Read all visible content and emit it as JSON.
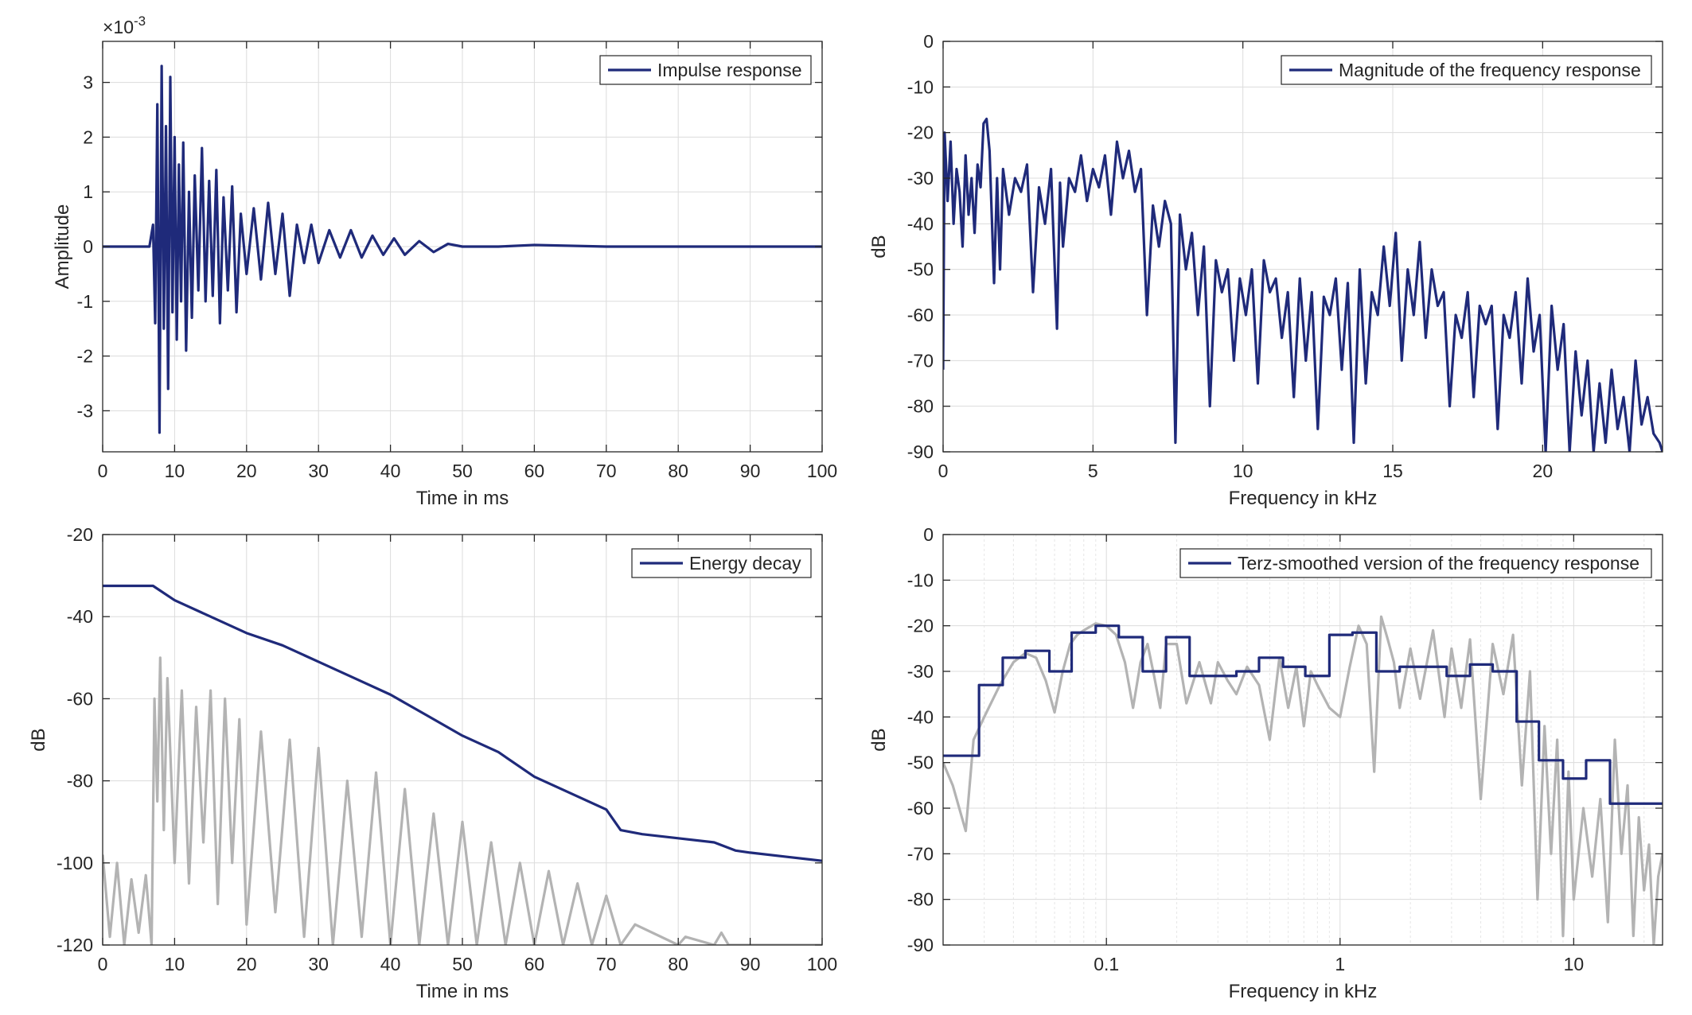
{
  "colors": {
    "series": "#1f2a7a",
    "gray": "#b3b3b3",
    "frame": "#262626",
    "grid": "#dcdcdc"
  },
  "chart_data": [
    {
      "type": "line",
      "exponent_label": "×10",
      "exponent_power": "-3",
      "xlabel": "Time in ms",
      "ylabel": "Amplitude",
      "xlim": [
        0,
        100
      ],
      "ylim": [
        -3.75,
        3.75
      ],
      "xticks": [
        0,
        10,
        20,
        30,
        40,
        50,
        60,
        70,
        80,
        90,
        100
      ],
      "xtick_labels": [
        "0",
        "10",
        "20",
        "30",
        "40",
        "50",
        "60",
        "70",
        "80",
        "90",
        "100"
      ],
      "yticks": [
        3,
        2,
        1,
        0,
        -1,
        -2,
        -3
      ],
      "ytick_labels": [
        "3",
        "2",
        "1",
        "0",
        "-1",
        "-2",
        "-3"
      ],
      "grid": true,
      "legend": "top-right",
      "series": [
        {
          "name": "Impulse response",
          "color": "#1f2a7a",
          "x": [
            0,
            6.5,
            7.0,
            7.3,
            7.6,
            7.9,
            8.2,
            8.5,
            8.8,
            9.1,
            9.4,
            9.7,
            10.0,
            10.3,
            10.6,
            10.9,
            11.2,
            11.6,
            12.0,
            12.4,
            12.8,
            13.3,
            13.8,
            14.3,
            14.8,
            15.3,
            15.8,
            16.3,
            16.8,
            17.4,
            18.0,
            18.6,
            19.2,
            20.0,
            21.0,
            22.0,
            23.0,
            24.0,
            25.0,
            26.0,
            27.0,
            28.0,
            29.0,
            30.0,
            31.5,
            33.0,
            34.5,
            36.0,
            37.5,
            39.0,
            40.5,
            42.0,
            44.0,
            46.0,
            48.0,
            50.0,
            55.0,
            60.0,
            70.0,
            80.0,
            90.0,
            100.0
          ],
          "values": [
            0,
            0,
            0.4,
            -1.4,
            2.6,
            -3.4,
            3.3,
            -1.5,
            2.2,
            -2.6,
            3.1,
            -1.2,
            2.0,
            -1.7,
            1.5,
            -1.0,
            1.9,
            -1.9,
            1.0,
            -1.3,
            1.3,
            -0.8,
            1.8,
            -1.0,
            1.2,
            -0.9,
            1.4,
            -1.4,
            0.9,
            -0.8,
            1.1,
            -1.2,
            0.6,
            -0.5,
            0.7,
            -0.6,
            0.8,
            -0.5,
            0.6,
            -0.9,
            0.4,
            -0.3,
            0.4,
            -0.3,
            0.3,
            -0.2,
            0.3,
            -0.2,
            0.2,
            -0.15,
            0.15,
            -0.15,
            0.1,
            -0.1,
            0.05,
            0,
            0,
            0.03,
            0,
            0,
            0,
            0
          ]
        }
      ]
    },
    {
      "type": "line",
      "xlabel": "Frequency in kHz",
      "ylabel": "dB",
      "xlim": [
        0,
        24
      ],
      "ylim": [
        -90,
        0
      ],
      "xticks": [
        0,
        5,
        10,
        15,
        20
      ],
      "xtick_labels": [
        "0",
        "5",
        "10",
        "15",
        "20"
      ],
      "yticks": [
        0,
        -10,
        -20,
        -30,
        -40,
        -50,
        -60,
        -70,
        -80,
        -90
      ],
      "ytick_labels": [
        "0",
        "-10",
        "-20",
        "-30",
        "-40",
        "-50",
        "-60",
        "-70",
        "-80",
        "-90"
      ],
      "grid": true,
      "legend": "top-right",
      "series": [
        {
          "name": "Magnitude of the frequency response",
          "color": "#1f2a7a",
          "x": [
            0.0,
            0.05,
            0.15,
            0.25,
            0.35,
            0.45,
            0.55,
            0.65,
            0.75,
            0.85,
            0.95,
            1.05,
            1.15,
            1.25,
            1.35,
            1.45,
            1.55,
            1.7,
            1.8,
            1.9,
            2.0,
            2.2,
            2.4,
            2.6,
            2.8,
            3.0,
            3.2,
            3.4,
            3.6,
            3.8,
            3.9,
            4.0,
            4.2,
            4.4,
            4.6,
            4.8,
            5.0,
            5.2,
            5.4,
            5.6,
            5.8,
            6.0,
            6.2,
            6.4,
            6.6,
            6.8,
            7.0,
            7.2,
            7.4,
            7.6,
            7.75,
            7.9,
            8.1,
            8.3,
            8.5,
            8.7,
            8.9,
            9.1,
            9.3,
            9.5,
            9.7,
            9.9,
            10.1,
            10.3,
            10.5,
            10.7,
            10.9,
            11.1,
            11.3,
            11.5,
            11.7,
            11.9,
            12.1,
            12.3,
            12.5,
            12.7,
            12.9,
            13.1,
            13.3,
            13.5,
            13.7,
            13.9,
            14.1,
            14.3,
            14.5,
            14.7,
            14.9,
            15.1,
            15.3,
            15.5,
            15.7,
            15.9,
            16.1,
            16.3,
            16.5,
            16.7,
            16.9,
            17.1,
            17.3,
            17.5,
            17.7,
            17.9,
            18.1,
            18.3,
            18.5,
            18.7,
            18.9,
            19.1,
            19.3,
            19.5,
            19.7,
            19.9,
            20.1,
            20.3,
            20.5,
            20.7,
            20.9,
            21.1,
            21.3,
            21.5,
            21.7,
            21.9,
            22.1,
            22.3,
            22.5,
            22.7,
            22.9,
            23.1,
            23.3,
            23.5,
            23.7,
            23.9,
            24.0
          ],
          "values": [
            -72,
            -20,
            -35,
            -22,
            -40,
            -28,
            -33,
            -45,
            -25,
            -38,
            -30,
            -42,
            -27,
            -32,
            -18,
            -17,
            -24,
            -53,
            -30,
            -50,
            -28,
            -38,
            -30,
            -33,
            -27,
            -55,
            -32,
            -40,
            -28,
            -63,
            -31,
            -45,
            -30,
            -33,
            -25,
            -35,
            -28,
            -32,
            -25,
            -38,
            -22,
            -30,
            -24,
            -33,
            -28,
            -60,
            -36,
            -45,
            -35,
            -40,
            -88,
            -38,
            -50,
            -42,
            -60,
            -45,
            -80,
            -48,
            -55,
            -50,
            -70,
            -52,
            -60,
            -50,
            -75,
            -48,
            -55,
            -52,
            -65,
            -55,
            -78,
            -52,
            -70,
            -55,
            -85,
            -56,
            -60,
            -52,
            -72,
            -53,
            -88,
            -50,
            -75,
            -55,
            -60,
            -45,
            -58,
            -42,
            -70,
            -50,
            -60,
            -44,
            -65,
            -50,
            -58,
            -55,
            -80,
            -60,
            -65,
            -55,
            -78,
            -58,
            -62,
            -58,
            -85,
            -60,
            -65,
            -55,
            -75,
            -52,
            -68,
            -60,
            -90,
            -58,
            -72,
            -62,
            -90,
            -68,
            -82,
            -70,
            -90,
            -75,
            -88,
            -72,
            -85,
            -78,
            -90,
            -70,
            -84,
            -78,
            -86,
            -88,
            -90
          ]
        }
      ]
    },
    {
      "type": "line",
      "xlabel": "Time in ms",
      "ylabel": "dB",
      "xlim": [
        0,
        100
      ],
      "ylim": [
        -120,
        -20
      ],
      "xticks": [
        0,
        10,
        20,
        30,
        40,
        50,
        60,
        70,
        80,
        90,
        100
      ],
      "xtick_labels": [
        "0",
        "10",
        "20",
        "30",
        "40",
        "50",
        "60",
        "70",
        "80",
        "90",
        "100"
      ],
      "yticks": [
        -20,
        -40,
        -60,
        -80,
        -100,
        -120
      ],
      "ytick_labels": [
        "-20",
        "-40",
        "-60",
        "-80",
        "-100",
        "-120"
      ],
      "grid": true,
      "legend": "top-right",
      "series": [
        {
          "name": "Energy decay",
          "color": "#1f2a7a",
          "x": [
            0,
            7,
            10,
            15,
            20,
            25,
            30,
            35,
            40,
            45,
            50,
            55,
            60,
            65,
            70,
            72,
            75,
            80,
            85,
            88,
            90,
            95,
            100
          ],
          "values": [
            -32.5,
            -32.5,
            -36,
            -40,
            -44,
            -47,
            -51,
            -55,
            -59,
            -64,
            -69,
            -73,
            -79,
            -83,
            -87,
            -92,
            -93,
            -94,
            -95,
            -97,
            -97.5,
            -98.5,
            -99.5
          ]
        },
        {
          "name": "",
          "color": "#b3b3b3",
          "x": [
            0,
            1,
            2,
            3,
            4,
            5,
            6,
            6.8,
            7.2,
            7.6,
            8.0,
            8.5,
            9,
            10,
            11,
            12,
            13,
            14,
            15,
            16,
            17,
            18,
            19,
            20,
            22,
            24,
            26,
            28,
            30,
            32,
            34,
            36,
            38,
            40,
            42,
            44,
            46,
            48,
            50,
            52,
            54,
            56,
            58,
            60,
            62,
            64,
            66,
            68,
            70,
            72,
            74,
            80,
            81,
            85,
            86,
            87,
            90,
            100
          ],
          "values": [
            -98,
            -118,
            -100,
            -120,
            -104,
            -117,
            -103,
            -120,
            -60,
            -85,
            -50,
            -92,
            -55,
            -100,
            -58,
            -105,
            -62,
            -95,
            -58,
            -110,
            -60,
            -100,
            -65,
            -115,
            -68,
            -112,
            -70,
            -118,
            -72,
            -120,
            -80,
            -118,
            -78,
            -120,
            -82,
            -120,
            -88,
            -120,
            -90,
            -120,
            -95,
            -120,
            -100,
            -120,
            -102,
            -120,
            -105,
            -120,
            -108,
            -120,
            -115,
            -120,
            -118,
            -120,
            -117,
            -120,
            -120,
            -120
          ]
        }
      ]
    },
    {
      "type": "line",
      "xscale": "log",
      "xlabel": "Frequency in kHz",
      "ylabel": "dB",
      "xlim": [
        0.02,
        24
      ],
      "ylim": [
        -90,
        0
      ],
      "xticks": [
        0.1,
        1,
        10
      ],
      "xtick_labels": [
        "0.1",
        "1",
        "10"
      ],
      "yticks": [
        0,
        -10,
        -20,
        -30,
        -40,
        -50,
        -60,
        -70,
        -80,
        -90
      ],
      "ytick_labels": [
        "0",
        "-10",
        "-20",
        "-30",
        "-40",
        "-50",
        "-60",
        "-70",
        "-80",
        "-90"
      ],
      "grid": true,
      "legend": "top-right",
      "series": [
        {
          "name": "Terz-smoothed version of the frequency response",
          "color": "#1f2a7a",
          "x": [
            0.02,
            0.0285,
            0.0285,
            0.036,
            0.036,
            0.045,
            0.045,
            0.057,
            0.057,
            0.071,
            0.071,
            0.09,
            0.09,
            0.113,
            0.113,
            0.143,
            0.143,
            0.18,
            0.18,
            0.227,
            0.227,
            0.286,
            0.286,
            0.36,
            0.36,
            0.45,
            0.45,
            0.57,
            0.57,
            0.71,
            0.71,
            0.9,
            0.9,
            1.13,
            1.13,
            1.43,
            1.43,
            1.8,
            1.8,
            2.27,
            2.27,
            2.86,
            2.86,
            3.6,
            3.6,
            4.5,
            4.5,
            5.7,
            5.7,
            7.1,
            7.1,
            9.0,
            9.0,
            11.3,
            11.3,
            14.3,
            14.3,
            18.0,
            18.0,
            24.0
          ],
          "values": [
            -48.5,
            -48.5,
            -33,
            -33,
            -27,
            -27,
            -25.5,
            -25.5,
            -30,
            -30,
            -21.5,
            -21.5,
            -20,
            -20,
            -22.5,
            -22.5,
            -30,
            -30,
            -22.5,
            -22.5,
            -31,
            -31,
            -31,
            -31,
            -30,
            -30,
            -27,
            -27,
            -29,
            -29,
            -31,
            -31,
            -22,
            -22,
            -21.5,
            -21.5,
            -30,
            -30,
            -29,
            -29,
            -29,
            -29,
            -31,
            -31,
            -28.5,
            -28.5,
            -30,
            -30,
            -41,
            -41,
            -49.5,
            -49.5,
            -53.5,
            -53.5,
            -49.5,
            -49.5,
            -59,
            -59,
            -59,
            -59
          ]
        },
        {
          "name": "",
          "color": "#b3b3b3",
          "x": [
            0.02,
            0.022,
            0.025,
            0.027,
            0.03,
            0.035,
            0.04,
            0.045,
            0.05,
            0.055,
            0.06,
            0.065,
            0.07,
            0.075,
            0.08,
            0.09,
            0.1,
            0.11,
            0.12,
            0.13,
            0.14,
            0.15,
            0.16,
            0.17,
            0.18,
            0.2,
            0.22,
            0.25,
            0.28,
            0.3,
            0.33,
            0.36,
            0.4,
            0.45,
            0.5,
            0.55,
            0.6,
            0.65,
            0.7,
            0.75,
            0.8,
            0.9,
            1.0,
            1.1,
            1.2,
            1.3,
            1.4,
            1.5,
            1.6,
            1.7,
            1.8,
            2.0,
            2.2,
            2.5,
            2.8,
            3.0,
            3.3,
            3.6,
            4.0,
            4.5,
            5.0,
            5.5,
            6.0,
            6.5,
            7.0,
            7.5,
            8.0,
            8.5,
            9.0,
            9.5,
            10,
            11,
            12,
            13,
            14,
            15,
            16,
            17,
            18,
            19,
            20,
            21,
            22,
            23,
            24
          ],
          "values": [
            -50,
            -55,
            -65,
            -45,
            -40,
            -33,
            -28,
            -26,
            -27,
            -32,
            -39,
            -30,
            -24,
            -22,
            -21,
            -19.5,
            -20,
            -22,
            -28,
            -38,
            -28,
            -24,
            -31,
            -38,
            -24,
            -24,
            -37,
            -28,
            -37,
            -28,
            -32,
            -35,
            -29,
            -33,
            -45,
            -27,
            -38,
            -29,
            -42,
            -30,
            -33,
            -38,
            -40,
            -29,
            -20,
            -24,
            -52,
            -18,
            -23,
            -28,
            -38,
            -25,
            -36,
            -21,
            -40,
            -25,
            -38,
            -23,
            -58,
            -24,
            -35,
            -22,
            -55,
            -30,
            -80,
            -42,
            -70,
            -45,
            -88,
            -52,
            -80,
            -60,
            -75,
            -58,
            -85,
            -45,
            -70,
            -55,
            -88,
            -62,
            -78,
            -68,
            -90,
            -75,
            -70
          ]
        }
      ]
    }
  ]
}
